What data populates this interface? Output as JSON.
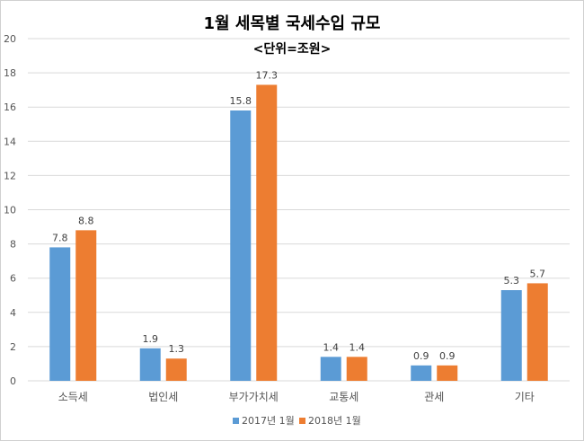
{
  "chart_data": {
    "type": "bar",
    "title": "1월 세목별 국세수입 규모",
    "subtitle": "<단위=조원>",
    "xlabel": "",
    "ylabel": "",
    "categories": [
      "소득세",
      "법인세",
      "부가가치세",
      "교통세",
      "관세",
      "기타"
    ],
    "series": [
      {
        "name": "2017년 1월",
        "color": "#5b9bd5",
        "values": [
          7.8,
          1.9,
          15.8,
          1.4,
          0.9,
          5.3
        ]
      },
      {
        "name": "2018년 1월",
        "color": "#ed7d31",
        "values": [
          8.8,
          1.3,
          17.3,
          1.4,
          0.9,
          5.7
        ]
      }
    ],
    "ylim": [
      0,
      20
    ],
    "yticks": [
      0,
      2,
      4,
      6,
      8,
      10,
      12,
      14,
      16,
      18,
      20
    ],
    "grid": true,
    "legend": "bottom-center",
    "data_labels": true
  }
}
